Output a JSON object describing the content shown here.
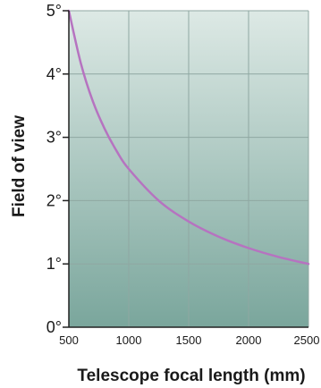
{
  "chart_data": {
    "type": "line",
    "xlabel": "Telescope focal length (mm)",
    "ylabel": "Field of view",
    "xlim": [
      500,
      2500
    ],
    "ylim": [
      0,
      5
    ],
    "x_ticks": [
      "500",
      "1000",
      "1500",
      "2000",
      "2500"
    ],
    "y_ticks": [
      "0°",
      "1°",
      "2°",
      "3°",
      "4°",
      "5°"
    ],
    "grid": true,
    "series": [
      {
        "color": "#b673c0",
        "x": [
          500,
          600,
          700,
          800,
          900,
          1000,
          1250,
          1500,
          1750,
          2000,
          2250,
          2500
        ],
        "y": [
          5.0,
          4.17,
          3.57,
          3.13,
          2.78,
          2.5,
          2.0,
          1.67,
          1.43,
          1.25,
          1.11,
          1.0
        ]
      }
    ],
    "background_gradient": [
      "#dde9e5",
      "#7aa69c"
    ],
    "grid_color": "#8fa7a2",
    "axis_color": "#222222"
  }
}
